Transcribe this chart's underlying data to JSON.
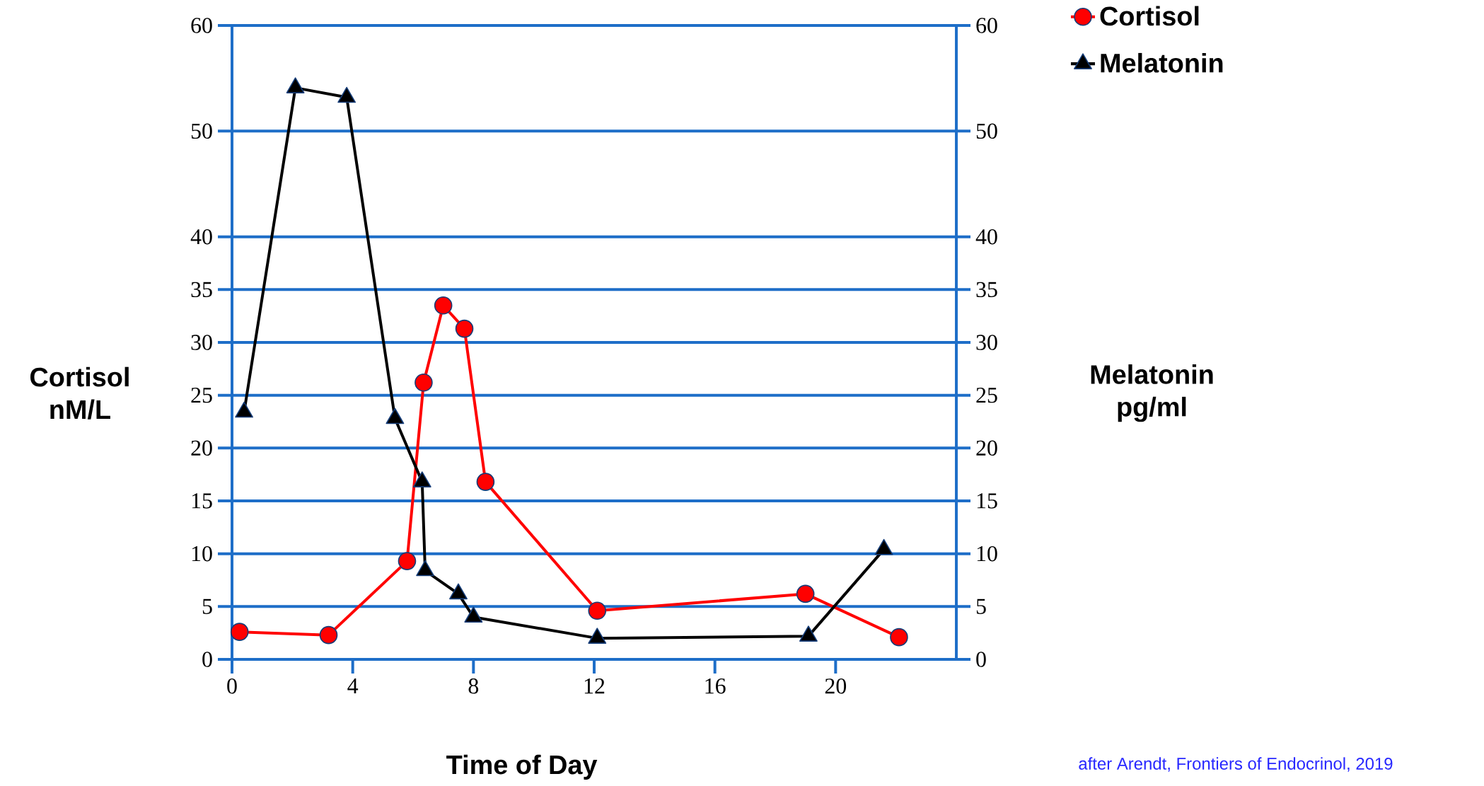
{
  "chart_data": {
    "type": "line",
    "xlabel": "Time of Day",
    "ylabel": "Cortisol nM/L",
    "y2label": "Melatonin pg/ml",
    "series": [
      {
        "name": "Cortisol",
        "color": "#ff0000",
        "marker": "circle",
        "x": [
          0.25,
          3.2,
          5.8,
          6.35,
          7.0,
          7.7,
          8.4,
          12.1,
          19.0,
          22.1
        ],
        "values": [
          2.6,
          2.3,
          9.3,
          26.2,
          33.5,
          31.3,
          16.8,
          4.6,
          6.2,
          2.1
        ]
      },
      {
        "name": "Melatonin",
        "color": "#000000",
        "marker": "triangle",
        "axis": "y2",
        "x": [
          0.4,
          2.1,
          3.8,
          5.4,
          6.3,
          6.4,
          7.5,
          8.0,
          12.1,
          19.1,
          21.6
        ],
        "values": [
          23.4,
          54.1,
          53.2,
          22.8,
          16.8,
          8.4,
          6.2,
          4.0,
          2.0,
          2.2,
          10.4
        ]
      }
    ],
    "xlim": [
      0,
      24
    ],
    "xticks": [
      0,
      4,
      8,
      12,
      16,
      20
    ],
    "ylim": [
      0,
      60
    ],
    "yticks": [
      0,
      5,
      10,
      15,
      20,
      25,
      30,
      35,
      40,
      50,
      60
    ],
    "y2lim": [
      0,
      60
    ],
    "y2ticks": [
      0,
      5,
      10,
      15,
      20,
      25,
      30,
      35,
      40,
      50,
      60
    ],
    "grid": "y",
    "legend": "top right",
    "line_style": "solid",
    "annotations": [
      "after Arendt, Frontiers of Endocrinol, 2019"
    ]
  }
}
